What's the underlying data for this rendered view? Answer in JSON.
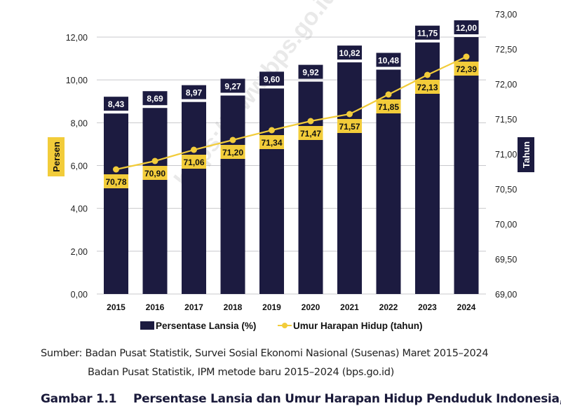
{
  "chart_data": {
    "type": "bar",
    "categories": [
      "2015",
      "2016",
      "2017",
      "2018",
      "2019",
      "2020",
      "2021",
      "2022",
      "2023",
      "2024"
    ],
    "series": [
      {
        "name": "Persentase Lansia (%)",
        "type": "bar",
        "axis": "left",
        "color": "#1c1b40",
        "values": [
          8.43,
          8.69,
          8.97,
          9.27,
          9.6,
          9.92,
          10.82,
          10.48,
          11.75,
          12.0
        ],
        "labels": [
          "8,43",
          "8,69",
          "8,97",
          "9,27",
          "9,60",
          "9,92",
          "10,82",
          "10,48",
          "11,75",
          "12,00"
        ]
      },
      {
        "name": "Umur Harapan Hidup (tahun)",
        "type": "line",
        "axis": "right",
        "color": "#f2cc3a",
        "values": [
          70.78,
          70.9,
          71.06,
          71.2,
          71.34,
          71.47,
          71.57,
          71.85,
          72.13,
          72.39
        ],
        "labels": [
          "70,78",
          "70,90",
          "71,06",
          "71,20",
          "71,34",
          "71,47",
          "71,57",
          "71,85",
          "72,13",
          "72,39"
        ]
      }
    ],
    "left_axis": {
      "label": "Persen",
      "ylim": [
        0,
        12
      ],
      "ticks": [
        "0,00",
        "2,00",
        "4,00",
        "6,00",
        "8,00",
        "10,00",
        "12,00"
      ],
      "tick_values": [
        0,
        2,
        4,
        6,
        8,
        10,
        12
      ]
    },
    "right_axis": {
      "label": "Tahun",
      "ylim": [
        69,
        73
      ],
      "ticks": [
        "69,00",
        "69,50",
        "70,00",
        "70,50",
        "71,00",
        "71,50",
        "72,00",
        "72,50",
        "73,00"
      ],
      "tick_values": [
        69,
        69.5,
        70,
        70.5,
        71,
        71.5,
        72,
        72.5,
        73
      ]
    },
    "legend": {
      "placement": "bottom",
      "items": [
        "Persentase Lansia (%)",
        "Umur Harapan Hidup (tahun)"
      ]
    },
    "grid": true,
    "watermark": "https://www.bps.go.id"
  },
  "source": {
    "line1": "Sumber: Badan Pusat Statistik, Survei Sosial Ekonomi Nasional (Susenas) Maret 2015–2024",
    "line2": "Badan Pusat Statistik, IPM metode baru 2015–2024 (bps.go.id)"
  },
  "caption": {
    "number": "Gambar 1.1",
    "title": "Persentase Lansia dan Umur Harapan Hidup Penduduk Indonesia,"
  }
}
